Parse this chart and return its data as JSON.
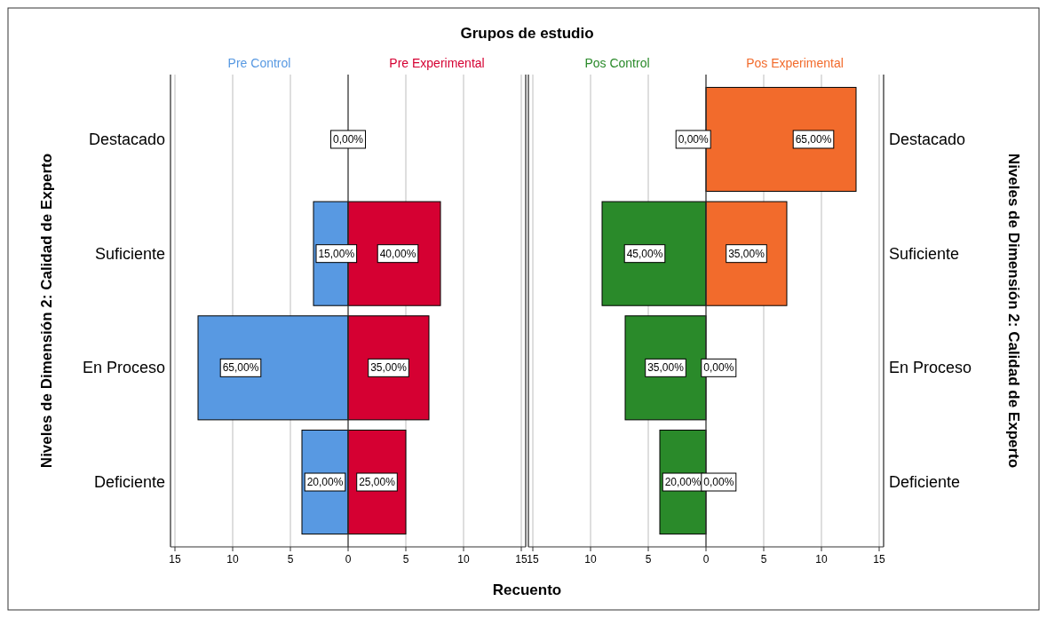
{
  "chart_data": [
    {
      "type": "bar",
      "orientation": "horizontal",
      "stacked": true,
      "title": "Grupos de estudio",
      "xlabel": "Recuento",
      "ylabel": "Niveles de Dimensión 2: Calidad de Experto",
      "categories": [
        "Destacado",
        "Suficiente",
        "En Proceso",
        "Deficiente"
      ],
      "xlim": [
        -15,
        15
      ],
      "xticks": [
        {
          "value": -15,
          "label": "15"
        },
        {
          "value": -10,
          "label": "10"
        },
        {
          "value": -5,
          "label": "5"
        },
        0,
        5,
        10,
        15
      ],
      "grid": "x",
      "series": [
        {
          "name": "Pre Control",
          "color": "#5899e2",
          "values": [
            0,
            -3,
            -13,
            -4
          ]
        },
        {
          "name": "Pre Experimental",
          "color": "#d50032",
          "values": [
            0,
            8,
            7,
            5
          ]
        }
      ],
      "annotations": [
        {
          "text": "0,00%",
          "x": 0,
          "y": "Destacado"
        },
        {
          "text": "15,00%",
          "x": -3,
          "y": "Suficiente"
        },
        {
          "text": "65,00%",
          "x": -13,
          "y": "En Proceso"
        },
        {
          "text": "20,00%",
          "x": -4,
          "y": "Deficiente"
        },
        {
          "text": "40,00%",
          "x": 8,
          "y": "Suficiente"
        },
        {
          "text": "35,00%",
          "x": 7,
          "y": "En Proceso"
        },
        {
          "text": "25,00%",
          "x": 5,
          "y": "Deficiente"
        }
      ]
    },
    {
      "type": "bar",
      "orientation": "horizontal",
      "stacked": true,
      "y2label": "Niveles de Dimensión 2: Calidad de Experto",
      "categories": [
        "Destacado",
        "Suficiente",
        "En Proceso",
        "Deficiente"
      ],
      "xlim": [
        -15,
        15
      ],
      "xticks": [
        {
          "value": -15,
          "label": "15"
        },
        {
          "value": -10,
          "label": "10"
        },
        {
          "value": -5,
          "label": "5"
        },
        0,
        5,
        10,
        15
      ],
      "grid": "x",
      "series": [
        {
          "name": "Pos Control",
          "color": "#2a8a2a",
          "values": [
            0,
            -9,
            -7,
            -4
          ]
        },
        {
          "name": "Pos Experimental",
          "color": "#f26b2c",
          "values": [
            13,
            7,
            0,
            0
          ]
        }
      ],
      "annotations": [
        {
          "text": "0,00%",
          "x": -1.1,
          "y": "Destacado"
        },
        {
          "text": "45,00%",
          "x": -9,
          "y": "Suficiente"
        },
        {
          "text": "35,00%",
          "x": -7,
          "y": "En Proceso"
        },
        {
          "text": "20,00%",
          "x": -4,
          "y": "Deficiente"
        },
        {
          "text": "65,00%",
          "x": 13,
          "y": "Destacado"
        },
        {
          "text": "35,00%",
          "x": 7,
          "y": "Suficiente"
        },
        {
          "text": "0,00%",
          "x": 1.1,
          "y": "En Proceso"
        },
        {
          "text": "0,00%",
          "x": 1.1,
          "y": "Deficiente"
        }
      ]
    }
  ]
}
